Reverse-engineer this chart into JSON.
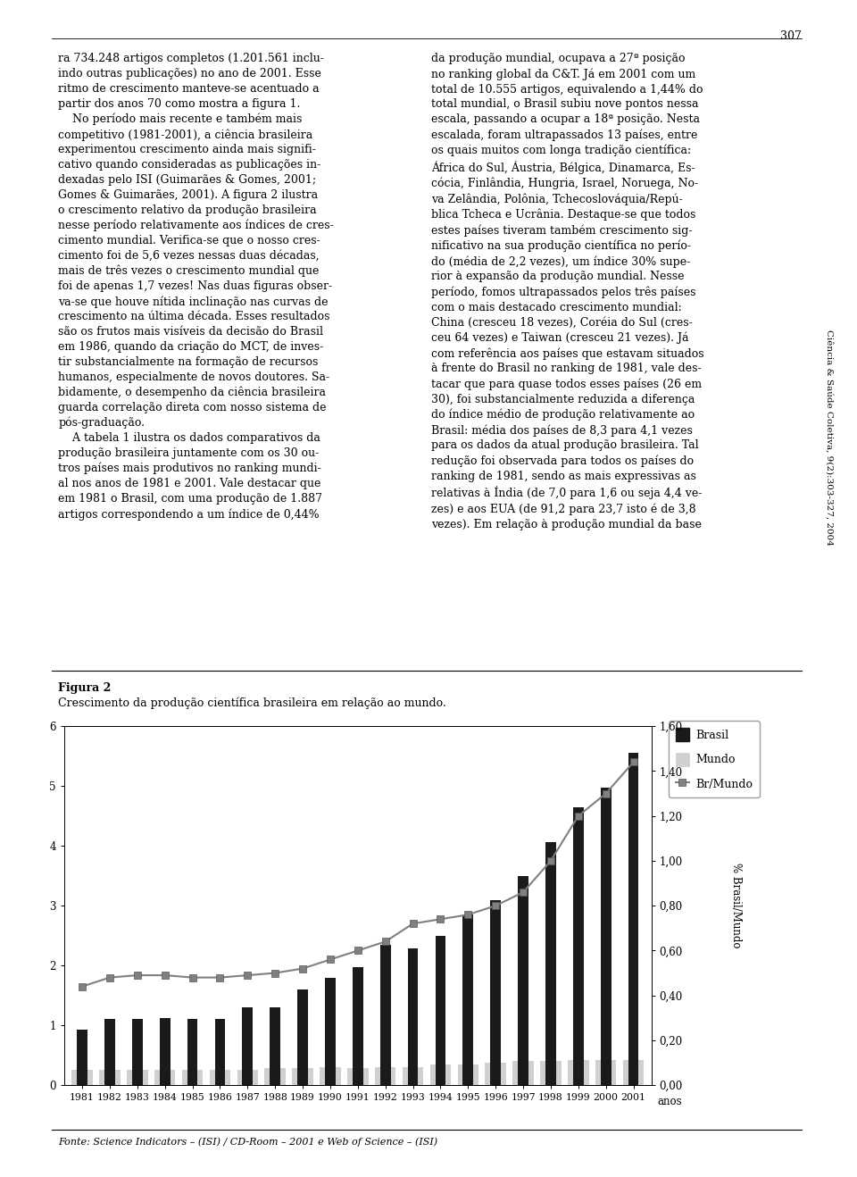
{
  "years": [
    1981,
    1982,
    1983,
    1984,
    1985,
    1986,
    1987,
    1988,
    1989,
    1990,
    1991,
    1992,
    1993,
    1994,
    1995,
    1996,
    1997,
    1998,
    1999,
    2000,
    2001
  ],
  "brasil": [
    0.93,
    1.1,
    1.1,
    1.12,
    1.1,
    1.1,
    1.3,
    1.3,
    1.6,
    1.8,
    1.97,
    2.35,
    2.28,
    2.5,
    2.85,
    3.1,
    3.5,
    4.07,
    4.65,
    4.97,
    5.55
  ],
  "mundo": [
    0.25,
    0.25,
    0.25,
    0.25,
    0.25,
    0.25,
    0.25,
    0.28,
    0.28,
    0.3,
    0.28,
    0.3,
    0.3,
    0.35,
    0.35,
    0.38,
    0.4,
    0.4,
    0.42,
    0.42,
    0.42
  ],
  "br_mundo": [
    0.44,
    0.48,
    0.49,
    0.49,
    0.48,
    0.48,
    0.49,
    0.5,
    0.52,
    0.56,
    0.6,
    0.64,
    0.72,
    0.74,
    0.76,
    0.8,
    0.86,
    1.0,
    1.2,
    1.3,
    1.44
  ],
  "figure_label": "Figura 2",
  "figure_caption": "Crescimento da produção científica brasileira em relação ao mundo.",
  "footer_text": "Fonte: Science Indicators – (ISI) / CD-Room – 2001 e Web of Science – (ISI)",
  "ylabel_right": "% Brasil/Mundo",
  "xlabel": "anos",
  "left_ylim": [
    0,
    6
  ],
  "right_ylim": [
    0.0,
    1.6
  ],
  "brasil_color": "#1a1a1a",
  "mundo_color": "#d0d0d0",
  "br_mundo_color": "#808080",
  "background_color": "#ffffff",
  "page_number": "307",
  "journal_text": "Ciência & Saúde Coletiva, 9(2):303-327, 2004",
  "text_left": "ra 734.248 artigos completos (1.201.561 inclu-\nindo outras publicações) no ano de 2001. Esse\nritmo de crescimento manteve-se acentuado a\npartir dos anos 70 como mostra a figura 1.\n    No período mais recente e também mais\ncompetitivo (1981-2001), a ciência brasileira\nexperimentou crescimento ainda mais signifi-\ncativo quando consideradas as publicações in-\ndexadas pelo ISI (Guimarães & Gomes, 2001;\nGomes & Guimarães, 2001). A figura 2 ilustra\no crescimento relativo da produção brasileira\nnesse período relativamente aos índices de cres-\ncimento mundial. Verifica-se que o nosso cres-\ncimento foi de 5,6 vezes nessas duas décadas,\nmais de três vezes o crescimento mundial que\nfoi de apenas 1,7 vezes! Nas duas figuras obser-\nva-se que houve nítida inclinação nas curvas de\ncrescimento na última década. Esses resultados\nsão os frutos mais visíveis da decisão do Brasil\nem 1986, quando da criação do MCT, de inves-\ntir substancialmente na formação de recursos\nhumanos, especialmente de novos doutores. Sa-\nbidamente, o desempenho da ciência brasileira\nguarda correlação direta com nosso sistema de\npós-graduação.\n    A tabela 1 ilustra os dados comparativos da\nprodução brasileira juntamente com os 30 ou-\ntros países mais produtivos no ranking mundi-\nal nos anos de 1981 e 2001. Vale destacar que\nem 1981 o Brasil, com uma produção de 1.887\nartigos correspondendo a um índice de 0,44%",
  "text_right": "da produção mundial, ocupava a 27ª posição\nno ranking global da C&T. Já em 2001 com um\ntotal de 10.555 artigos, equivalendo a 1,44% do\ntotal mundial, o Brasil subiu nove pontos nessa\nescala, passando a ocupar a 18ª posição. Nesta\nescalada, foram ultrapassados 13 países, entre\nos quais muitos com longa tradição científica:\nÁfrica do Sul, Áustria, Bélgica, Dinamarca, Es-\ncócia, Finlândia, Hungria, Israel, Noruega, No-\nva Zelândia, Polônia, Tchecoslováquia/Repú-\nblica Tcheca e Ucrânia. Destaque-se que todos\nestes países tiveram também crescimento sig-\nnificativo na sua produção científica no perío-\ndo (média de 2,2 vezes), um índice 30% supe-\nrior à expansão da produção mundial. Nesse\nperíodo, fomos ultrapassados pelos três países\ncom o mais destacado crescimento mundial:\nChina (cresceu 18 vezes), Coréia do Sul (cres-\nceu 64 vezes) e Taiwan (cresceu 21 vezes). Já\ncom referência aos países que estavam situados\nà frente do Brasil no ranking de 1981, vale des-\ntacar que para quase todos esses países (26 em\n30), foi substancialmente reduzida a diferença\ndo índice médio de produção relativamente ao\nBrasil: média dos países de 8,3 para 4,1 vezes\npara os dados da atual produção brasileira. Tal\nredução foi observada para todos os países do\nranking de 1981, sendo as mais expressivas as\nrelativas à Índia (de 7,0 para 1,6 ou seja 4,4 ve-\nzes) e aos EUA (de 91,2 para 23,7 isto é de 3,8\nvezes). Em relação à produção mundial da base"
}
